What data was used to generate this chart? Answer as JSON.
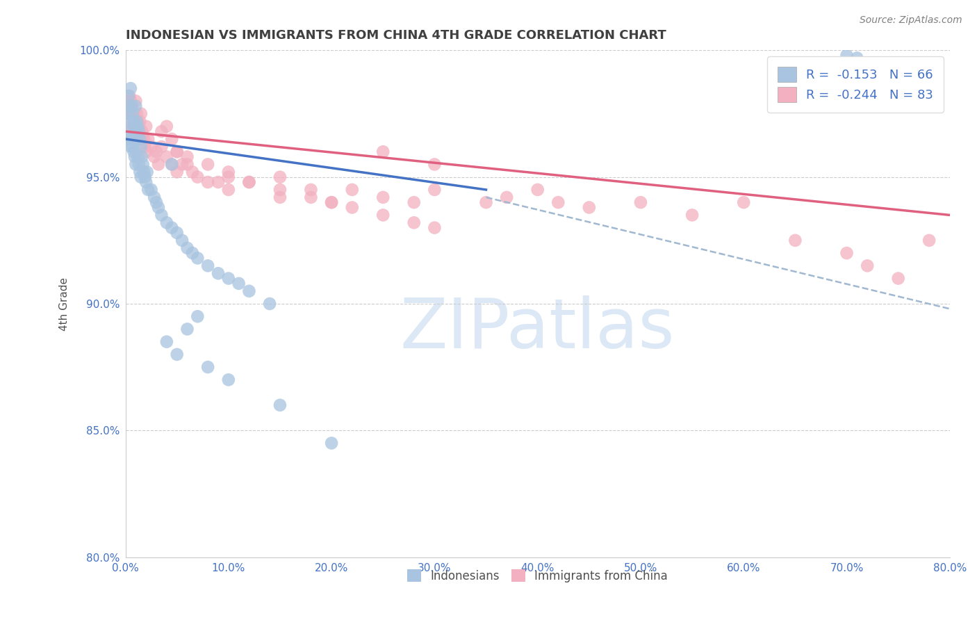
{
  "title": "INDONESIAN VS IMMIGRANTS FROM CHINA 4TH GRADE CORRELATION CHART",
  "source": "Source: ZipAtlas.com",
  "ylabel": "4th Grade",
  "xlim": [
    0.0,
    80.0
  ],
  "ylim": [
    80.0,
    100.0
  ],
  "xticks": [
    0.0,
    10.0,
    20.0,
    30.0,
    40.0,
    50.0,
    60.0,
    70.0,
    80.0
  ],
  "yticks": [
    80.0,
    85.0,
    90.0,
    95.0,
    100.0
  ],
  "blue_R": -0.153,
  "blue_N": 66,
  "pink_R": -0.244,
  "pink_N": 83,
  "blue_color": "#a8c4e0",
  "pink_color": "#f2b0c0",
  "blue_line_color": "#4472c4",
  "pink_line_color": "#e06080",
  "dashed_line_color": "#a0b8d0",
  "title_color": "#404040",
  "axis_label_color": "#505050",
  "tick_color": "#4472c4",
  "legend_text_color": "#4472c4",
  "blue_line_x0": 0.0,
  "blue_line_y0": 96.5,
  "blue_line_x1": 35.0,
  "blue_line_y1": 94.5,
  "pink_line_x0": 0.0,
  "pink_line_y0": 96.8,
  "pink_line_x1": 80.0,
  "pink_line_y1": 93.5,
  "dash_line_x0": 35.0,
  "dash_line_y0": 94.2,
  "dash_line_x1": 80.0,
  "dash_line_y1": 89.8,
  "blue_scatter_x": [
    0.2,
    0.3,
    0.3,
    0.4,
    0.4,
    0.5,
    0.5,
    0.5,
    0.6,
    0.6,
    0.7,
    0.7,
    0.8,
    0.8,
    0.9,
    0.9,
    1.0,
    1.0,
    1.0,
    1.1,
    1.1,
    1.2,
    1.2,
    1.3,
    1.3,
    1.4,
    1.4,
    1.5,
    1.5,
    1.6,
    1.7,
    1.8,
    1.9,
    2.0,
    2.1,
    2.2,
    2.5,
    2.8,
    3.0,
    3.2,
    3.5,
    4.0,
    4.5,
    5.0,
    5.5,
    6.0,
    6.5,
    7.0,
    8.0,
    9.0,
    10.0,
    11.0,
    12.0,
    14.0,
    4.0,
    5.0,
    6.0,
    7.0,
    8.0,
    10.0,
    15.0,
    20.0,
    4.5,
    70.0,
    71.0,
    78.0
  ],
  "blue_scatter_y": [
    97.5,
    98.2,
    96.8,
    97.8,
    96.5,
    98.5,
    97.2,
    96.2,
    97.8,
    96.5,
    97.5,
    96.2,
    97.2,
    96.0,
    97.0,
    95.8,
    97.8,
    96.8,
    95.5,
    97.2,
    96.5,
    97.0,
    95.8,
    96.8,
    95.5,
    96.5,
    95.2,
    96.2,
    95.0,
    95.8,
    95.5,
    95.2,
    95.0,
    94.8,
    95.2,
    94.5,
    94.5,
    94.2,
    94.0,
    93.8,
    93.5,
    93.2,
    93.0,
    92.8,
    92.5,
    92.2,
    92.0,
    91.8,
    91.5,
    91.2,
    91.0,
    90.8,
    90.5,
    90.0,
    88.5,
    88.0,
    89.0,
    89.5,
    87.5,
    87.0,
    86.0,
    84.5,
    95.5,
    99.8,
    99.7,
    99.5
  ],
  "pink_scatter_x": [
    0.2,
    0.3,
    0.4,
    0.4,
    0.5,
    0.5,
    0.6,
    0.7,
    0.8,
    0.8,
    0.9,
    1.0,
    1.0,
    1.1,
    1.2,
    1.2,
    1.3,
    1.4,
    1.5,
    1.5,
    1.6,
    1.7,
    1.8,
    1.9,
    2.0,
    2.0,
    2.2,
    2.5,
    2.8,
    3.0,
    3.2,
    3.5,
    4.0,
    4.0,
    4.5,
    5.0,
    5.0,
    5.5,
    6.0,
    6.5,
    7.0,
    8.0,
    9.0,
    10.0,
    10.0,
    12.0,
    15.0,
    15.0,
    18.0,
    20.0,
    22.0,
    25.0,
    25.0,
    28.0,
    30.0,
    30.0,
    35.0,
    37.0,
    40.0,
    42.0,
    45.0,
    50.0,
    55.0,
    60.0,
    65.0,
    70.0,
    72.0,
    75.0,
    78.0,
    3.5,
    4.5,
    5.0,
    6.0,
    8.0,
    10.0,
    12.0,
    15.0,
    18.0,
    20.0,
    22.0,
    25.0,
    28.0,
    30.0
  ],
  "pink_scatter_y": [
    98.0,
    97.8,
    98.2,
    97.5,
    98.0,
    97.0,
    97.8,
    97.5,
    97.5,
    97.0,
    97.2,
    98.0,
    97.0,
    97.5,
    97.2,
    96.8,
    97.0,
    97.2,
    97.5,
    96.5,
    96.8,
    96.5,
    96.5,
    96.2,
    97.0,
    96.0,
    96.5,
    96.2,
    95.8,
    96.0,
    95.5,
    96.2,
    95.8,
    97.0,
    95.5,
    96.0,
    95.2,
    95.5,
    95.5,
    95.2,
    95.0,
    94.8,
    94.8,
    95.2,
    94.5,
    94.8,
    95.0,
    94.2,
    94.5,
    94.0,
    94.5,
    94.2,
    96.0,
    94.0,
    94.5,
    95.5,
    94.0,
    94.2,
    94.5,
    94.0,
    93.8,
    94.0,
    93.5,
    94.0,
    92.5,
    92.0,
    91.5,
    91.0,
    92.5,
    96.8,
    96.5,
    96.0,
    95.8,
    95.5,
    95.0,
    94.8,
    94.5,
    94.2,
    94.0,
    93.8,
    93.5,
    93.2,
    93.0
  ]
}
